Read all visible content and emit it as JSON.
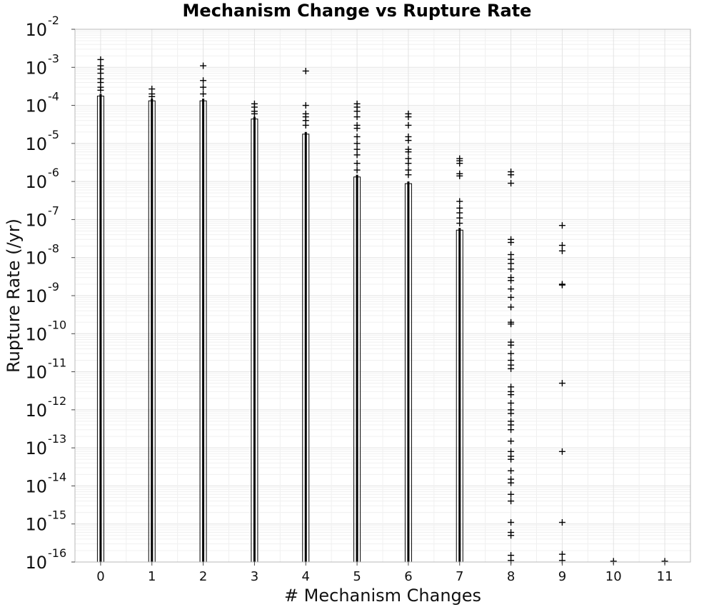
{
  "chart_data": {
    "type": "scatter",
    "title": "Mechanism Change vs Rupture Rate",
    "xlabel": "# Mechanism Changes",
    "ylabel": "Rupture Rate (/yr)",
    "xlim": [
      -0.5,
      11.5
    ],
    "ylim": [
      1e-16,
      0.01
    ],
    "y_scale": "log",
    "grid": true,
    "marker": "+",
    "x_ticks": [
      "0",
      "1",
      "2",
      "3",
      "4",
      "5",
      "6",
      "7",
      "8",
      "9",
      "10",
      "11"
    ],
    "y_ticks": [
      {
        "base": "10",
        "exp": "-16"
      },
      {
        "base": "10",
        "exp": "-15"
      },
      {
        "base": "10",
        "exp": "-14"
      },
      {
        "base": "10",
        "exp": "-13"
      },
      {
        "base": "10",
        "exp": "-12"
      },
      {
        "base": "10",
        "exp": "-11"
      },
      {
        "base": "10",
        "exp": "-10"
      },
      {
        "base": "10",
        "exp": "-9"
      },
      {
        "base": "10",
        "exp": "-8"
      },
      {
        "base": "10",
        "exp": "-7"
      },
      {
        "base": "10",
        "exp": "-6"
      },
      {
        "base": "10",
        "exp": "-5"
      },
      {
        "base": "10",
        "exp": "-4"
      },
      {
        "base": "10",
        "exp": "-3"
      },
      {
        "base": "10",
        "exp": "-2"
      }
    ],
    "columns": [
      {
        "x": 0,
        "dense_range": [
          1e-16,
          0.0002
        ],
        "points": [
          0.0016,
          0.0011,
          0.0009,
          0.0007,
          0.0005,
          0.0004,
          0.0003,
          0.00025
        ]
      },
      {
        "x": 1,
        "dense_range": [
          1e-16,
          0.00015
        ],
        "points": [
          0.00027,
          0.0002,
          0.00017
        ]
      },
      {
        "x": 2,
        "dense_range": [
          1e-16,
          0.00015
        ],
        "points": [
          0.0011,
          0.00045,
          0.0003,
          0.0002
        ]
      },
      {
        "x": 3,
        "dense_range": [
          1e-16,
          5e-05
        ],
        "points": [
          0.00011,
          9e-05,
          7e-05,
          6e-05
        ]
      },
      {
        "x": 4,
        "dense_range": [
          1e-16,
          2e-05
        ],
        "points": [
          0.0008,
          0.0001,
          6e-05,
          5e-05,
          4e-05,
          3e-05
        ]
      },
      {
        "x": 5,
        "dense_range": [
          1e-16,
          1.5e-06
        ],
        "points": [
          0.00011,
          9e-05,
          7e-05,
          5e-05,
          3e-05,
          2.5e-05,
          1.5e-05,
          1e-05,
          7e-06,
          5e-06,
          3e-06,
          2e-06
        ]
      },
      {
        "x": 6,
        "dense_range": [
          1e-16,
          1e-06
        ],
        "points": [
          6e-05,
          5e-05,
          3e-05,
          1.5e-05,
          1.2e-05,
          7e-06,
          6e-06,
          4e-06,
          3e-06,
          2e-06,
          1.5e-06
        ]
      },
      {
        "x": 7,
        "dense_range": [
          1e-16,
          6e-08
        ],
        "points": [
          4e-06,
          3.5e-06,
          3e-06,
          1.6e-06,
          1.4e-06,
          3e-07,
          2e-07,
          1.5e-07,
          1.1e-07,
          8e-08
        ]
      },
      {
        "x": 8,
        "dense_range": null,
        "points": [
          1.8e-06,
          1.5e-06,
          9e-07,
          3e-08,
          2.5e-08,
          1.2e-08,
          9e-09,
          7e-09,
          5e-09,
          3e-09,
          2.5e-09,
          1.5e-09,
          9e-10,
          5e-10,
          2e-10,
          1.8e-10,
          6e-11,
          5e-11,
          3e-11,
          2e-11,
          1.5e-11,
          1.2e-11,
          4e-12,
          3e-12,
          2.5e-12,
          1.5e-12,
          1e-12,
          8e-13,
          5e-13,
          4e-13,
          3e-13,
          1.5e-13,
          8e-14,
          6e-14,
          5e-14,
          2.5e-14,
          1.5e-14,
          1.2e-14,
          6e-15,
          4e-15,
          1.1e-15,
          6e-16,
          5e-16,
          1.5e-16,
          1.1e-16
        ]
      },
      {
        "x": 9,
        "dense_range": null,
        "points": [
          7e-08,
          2.1e-08,
          1.5e-08,
          2e-09,
          1.9e-09,
          5e-12,
          8e-14,
          1.1e-15,
          1.6e-16,
          1.1e-16
        ]
      },
      {
        "x": 10,
        "dense_range": null,
        "points": [
          1.05e-16
        ]
      },
      {
        "x": 11,
        "dense_range": null,
        "points": [
          1.05e-16
        ]
      }
    ]
  }
}
